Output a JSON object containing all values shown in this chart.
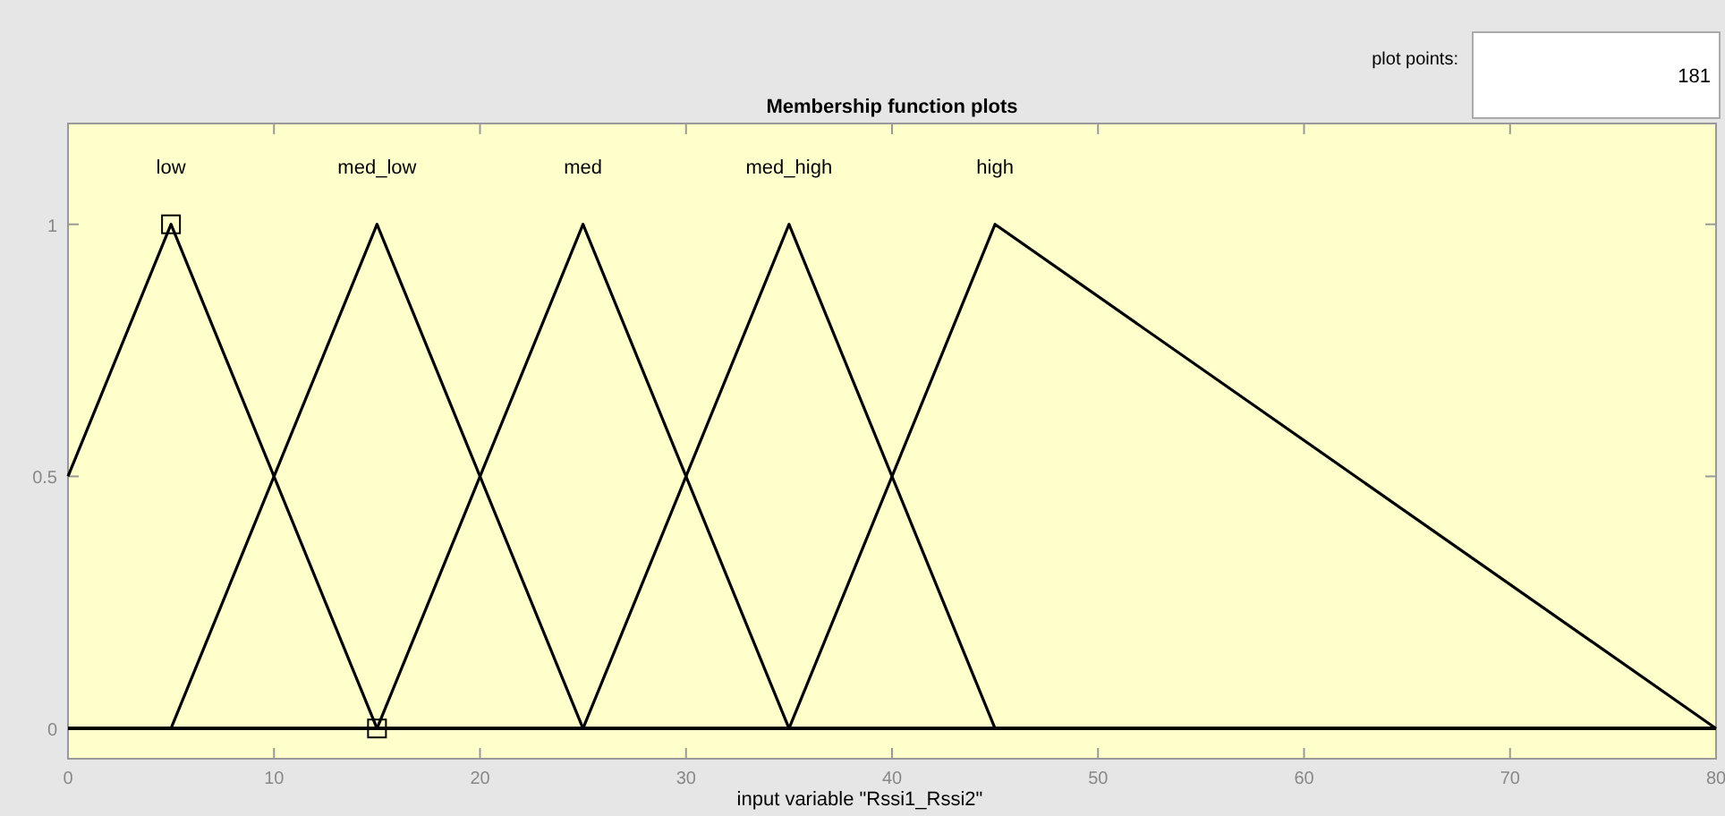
{
  "chart_data": {
    "type": "line",
    "title": "Membership function plots",
    "xlabel": "input variable \"Rssi1_Rssi2\"",
    "annotations": [
      "plot points:",
      "181"
    ],
    "xlim": [
      0,
      80
    ],
    "ylim": [
      -0.06,
      1.2
    ],
    "xticks": [
      0,
      10,
      20,
      30,
      40,
      50,
      60,
      70,
      80
    ],
    "yticks": [
      0,
      0.5,
      1
    ],
    "grid": false,
    "legend": false,
    "line_style": "solid",
    "series": [
      {
        "name": "low",
        "color": "#000000",
        "x": [
          0,
          5,
          15,
          80
        ],
        "values": [
          0.5,
          1,
          0,
          0
        ]
      },
      {
        "name": "med_low",
        "color": "#000000",
        "x": [
          0,
          5,
          15,
          25,
          80
        ],
        "values": [
          0,
          0,
          1,
          0,
          0
        ]
      },
      {
        "name": "med",
        "color": "#000000",
        "x": [
          0,
          15,
          25,
          35,
          80
        ],
        "values": [
          0,
          0,
          1,
          0,
          0
        ]
      },
      {
        "name": "med_high",
        "color": "#000000",
        "x": [
          0,
          25,
          35,
          45,
          80
        ],
        "values": [
          0,
          0,
          1,
          0,
          0
        ]
      },
      {
        "name": "high",
        "color": "#000000",
        "x": [
          0,
          35,
          45,
          80
        ],
        "values": [
          0,
          0,
          1,
          0
        ]
      }
    ]
  }
}
